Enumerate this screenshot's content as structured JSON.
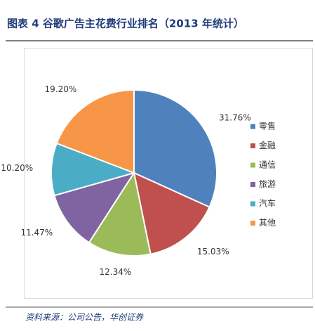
{
  "chart_data": {
    "type": "pie",
    "title": "图表 4 谷歌广告主花费行业排名（2013 年统计）",
    "categories": [
      "零售",
      "金融",
      "通信",
      "旅游",
      "汽车",
      "其他"
    ],
    "values": [
      31.76,
      15.03,
      12.34,
      11.47,
      10.2,
      19.2
    ],
    "value_labels": [
      "31.76%",
      "15.03%",
      "12.34%",
      "11.47%",
      "10.20%",
      "19.20%"
    ],
    "colors": [
      "#4f81bd",
      "#c0504d",
      "#9bbb59",
      "#8064a2",
      "#4bacc6",
      "#f79646"
    ],
    "legend": "right",
    "source": "资料来源：公司公告，华创证券"
  }
}
